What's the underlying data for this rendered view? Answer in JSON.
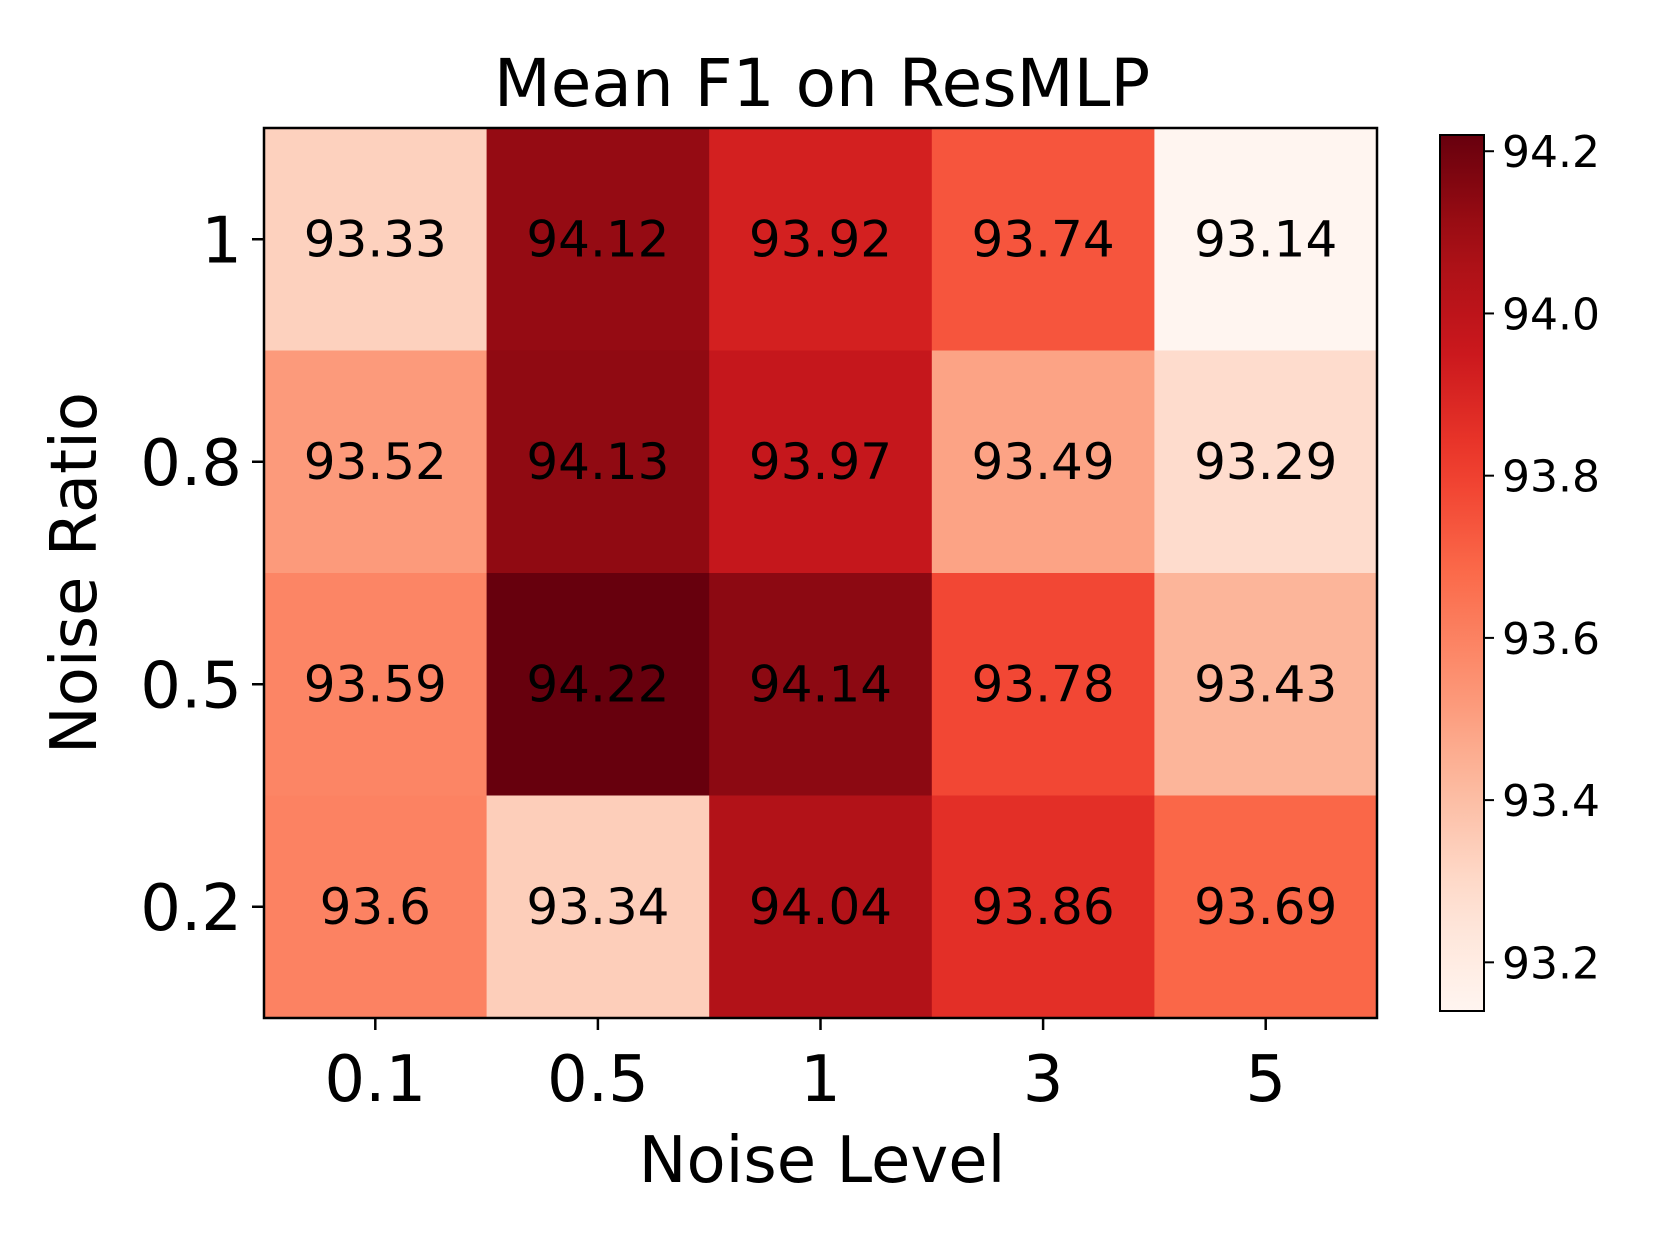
{
  "chart_data": {
    "type": "heatmap",
    "title": "Mean F1 on ResMLP",
    "xlabel": "Noise Level",
    "ylabel": "Noise Ratio",
    "x_categories": [
      "0.1",
      "0.5",
      "1",
      "3",
      "5"
    ],
    "y_categories": [
      "1",
      "0.8",
      "0.5",
      "0.2"
    ],
    "values": [
      [
        93.33,
        94.12,
        93.92,
        93.74,
        93.14
      ],
      [
        93.52,
        94.13,
        93.97,
        93.49,
        93.29
      ],
      [
        93.59,
        94.22,
        94.14,
        93.78,
        93.43
      ],
      [
        93.6,
        93.34,
        94.04,
        93.86,
        93.69
      ]
    ],
    "colormap": "Reds",
    "color_range": [
      93.14,
      94.22
    ],
    "colorbar_ticks": [
      "93.2",
      "93.4",
      "93.6",
      "93.8",
      "94.0",
      "94.2"
    ],
    "grid": false,
    "colorbar_position": "right"
  }
}
